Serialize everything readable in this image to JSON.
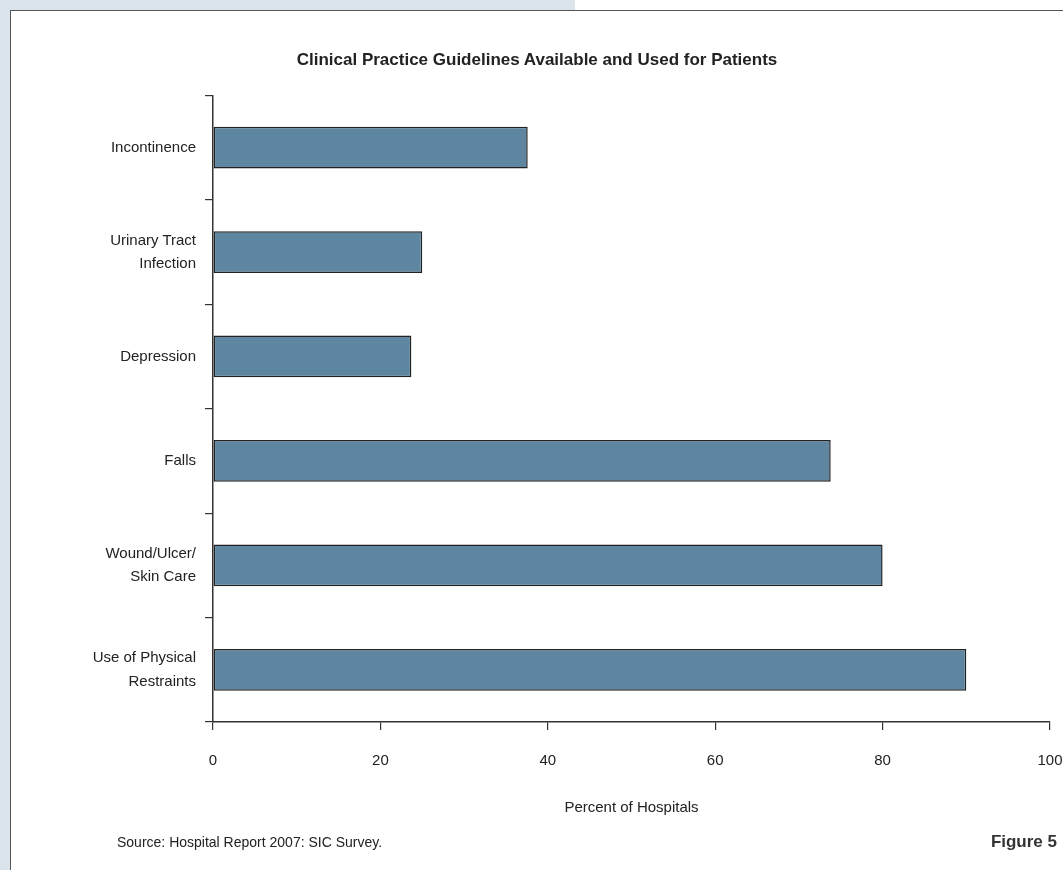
{
  "chart_data": {
    "type": "bar",
    "orientation": "horizontal",
    "title": "Clinical Practice Guidelines Available and Used for Patients",
    "categories": [
      "Incontinence",
      "Urinary Tract Infection",
      "Depression",
      "Falls",
      "Wound/Ulcer/Skin Care",
      "Use of Physical Restraints"
    ],
    "values": [
      37.6,
      25,
      23.7,
      73.8,
      80,
      90
    ],
    "color": "#5e86a0",
    "xlim": [
      0,
      100
    ],
    "xticks": [
      0,
      20,
      40,
      60,
      80,
      100
    ],
    "xlabel": "Percent of Hospitals",
    "annotations": [
      "Source: Hospital Report 2007: SIC Survey.",
      "Figure 5"
    ]
  }
}
